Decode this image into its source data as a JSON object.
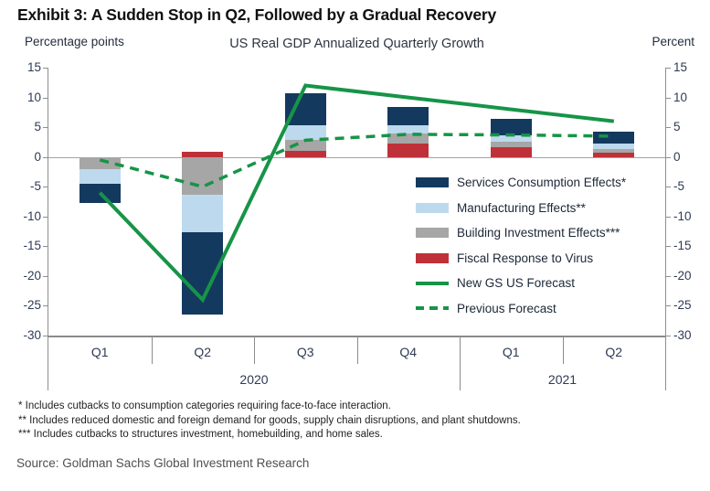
{
  "title": "Exhibit 3: A Sudden Stop in Q2, Followed by a Gradual Recovery",
  "chart_data": {
    "type": "bar",
    "stacked": true,
    "title": "US Real GDP Annualized Quarterly Growth",
    "left_axis_label": "Percentage points",
    "right_axis_label": "Percent",
    "ylim": [
      -30,
      15
    ],
    "yticks": [
      15,
      10,
      5,
      0,
      -5,
      -10,
      -15,
      -20,
      -25,
      -30
    ],
    "grid": "zero-line-only",
    "categories": [
      "Q1",
      "Q2",
      "Q3",
      "Q4",
      "Q1",
      "Q2"
    ],
    "year_groups": [
      {
        "label": "2020",
        "span": 4
      },
      {
        "label": "2021",
        "span": 2
      }
    ],
    "bar_series": [
      {
        "name": "Fiscal Response to Virus",
        "color": "#bf3139",
        "values": [
          0,
          0.9,
          1.1,
          2.3,
          1.6,
          0.7
        ]
      },
      {
        "name": "Building Investment Effects***",
        "color": "#a6a6a6",
        "values": [
          -2.0,
          -6.3,
          1.8,
          1.6,
          0.9,
          0.7
        ]
      },
      {
        "name": "Manufacturing Effects**",
        "color": "#bdd9ee",
        "values": [
          -2.5,
          -6.4,
          2.4,
          1.4,
          1.2,
          0.8
        ]
      },
      {
        "name": "Services Consumption Effects*",
        "color": "#14395e",
        "values": [
          -3.3,
          -13.7,
          5.4,
          3.1,
          2.7,
          2.1
        ]
      }
    ],
    "line_series": [
      {
        "name": "New GS US Forecast",
        "style": "solid",
        "color": "#169447",
        "values": [
          -6,
          -24,
          12,
          10,
          8,
          6
        ]
      },
      {
        "name": "Previous Forecast",
        "style": "dashed",
        "color": "#169447",
        "values": [
          -0.5,
          -5,
          2.8,
          3.8,
          3.7,
          3.5
        ]
      }
    ],
    "legend_order": [
      {
        "type": "bar",
        "index": 3
      },
      {
        "type": "bar",
        "index": 2
      },
      {
        "type": "bar",
        "index": 1
      },
      {
        "type": "bar",
        "index": 0
      },
      {
        "type": "line",
        "index": 0
      },
      {
        "type": "line",
        "index": 1
      }
    ],
    "legend_position": "inside-right"
  },
  "footnotes": [
    "* Includes cutbacks to consumption categories requiring face-to-face interaction.",
    "** Includes reduced domestic and foreign demand for goods, supply chain disruptions, and plant shutdowns.",
    "*** Includes cutbacks to structures investment, homebuilding, and home sales."
  ],
  "source": "Source: Goldman Sachs Global Investment Research",
  "colors": {
    "forecast_green": "#169447",
    "services_navy": "#14395e",
    "manufacturing_light_blue": "#bdd9ee",
    "building_gray": "#a6a6a6",
    "fiscal_red": "#bf3139",
    "axis_gray": "#8f8f8f",
    "tick_text": "#2e3a55"
  }
}
